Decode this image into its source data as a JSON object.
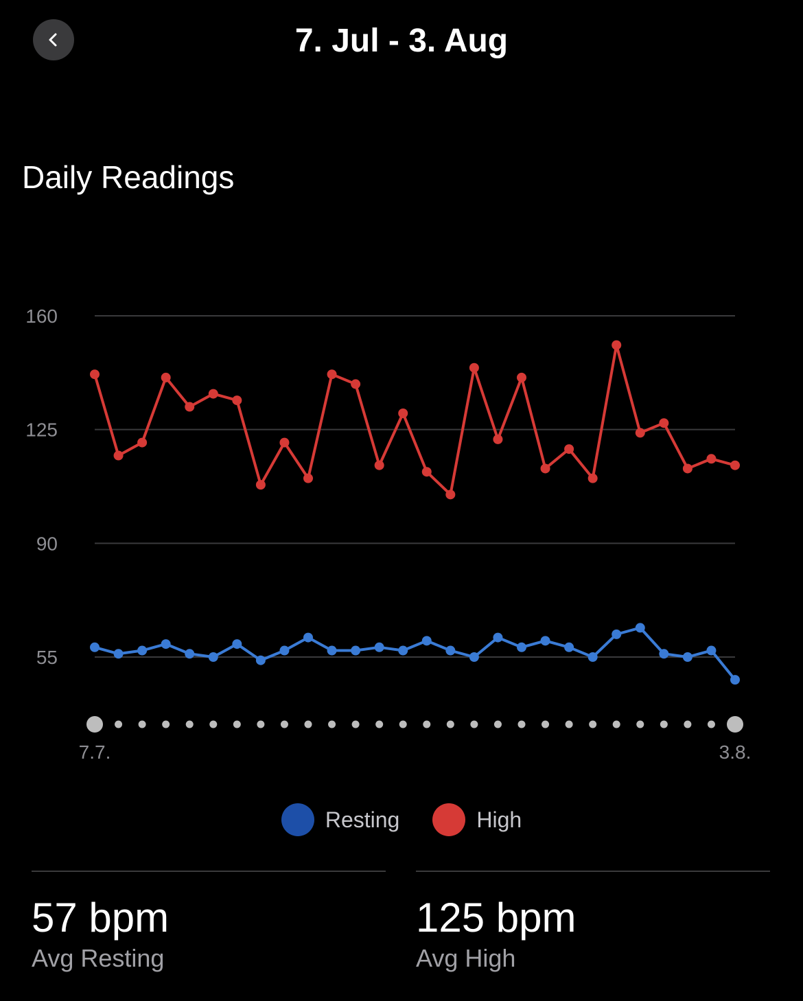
{
  "header": {
    "title": "7. Jul - 3. Aug",
    "back_icon": "chevron-left-icon"
  },
  "section_title": "Daily Readings",
  "colors": {
    "resting": "#3a7bd5",
    "resting_legend": "#1d4fa8",
    "high": "#d63a36",
    "grid": "#3a3a3c",
    "axis_text": "#8e8e93",
    "dot": "#bdbdbd"
  },
  "chart_data": {
    "type": "line",
    "x": [
      "7.7.",
      "8.7.",
      "9.7.",
      "10.7.",
      "11.7.",
      "12.7.",
      "13.7.",
      "14.7.",
      "15.7.",
      "16.7.",
      "17.7.",
      "18.7.",
      "19.7.",
      "20.7.",
      "21.7.",
      "22.7.",
      "23.7.",
      "24.7.",
      "25.7.",
      "26.7.",
      "27.7.",
      "28.7.",
      "29.7.",
      "30.7.",
      "31.7.",
      "1.8.",
      "2.8.",
      "3.8."
    ],
    "x_tick_labels": [
      "7.7.",
      "3.8."
    ],
    "yticks": [
      "160",
      "125",
      "90",
      "55"
    ],
    "ylim": [
      39,
      160
    ],
    "series": [
      {
        "name": "High",
        "values": [
          142,
          117,
          121,
          141,
          132,
          136,
          134,
          108,
          121,
          110,
          142,
          139,
          114,
          130,
          112,
          105,
          144,
          122,
          141,
          113,
          119,
          110,
          151,
          124,
          127,
          113,
          116,
          114
        ]
      },
      {
        "name": "Resting",
        "values": [
          58,
          56,
          57,
          59,
          56,
          55,
          59,
          54,
          57,
          61,
          57,
          57,
          58,
          57,
          60,
          57,
          55,
          61,
          58,
          60,
          58,
          55,
          62,
          64,
          56,
          55,
          57,
          48
        ]
      }
    ],
    "grid": true
  },
  "legend": [
    {
      "label": "Resting",
      "key": "resting_legend"
    },
    {
      "label": "High",
      "key": "high"
    }
  ],
  "stats": [
    {
      "value": "57 bpm",
      "label": "Avg Resting"
    },
    {
      "value": "125 bpm",
      "label": "Avg High"
    }
  ]
}
